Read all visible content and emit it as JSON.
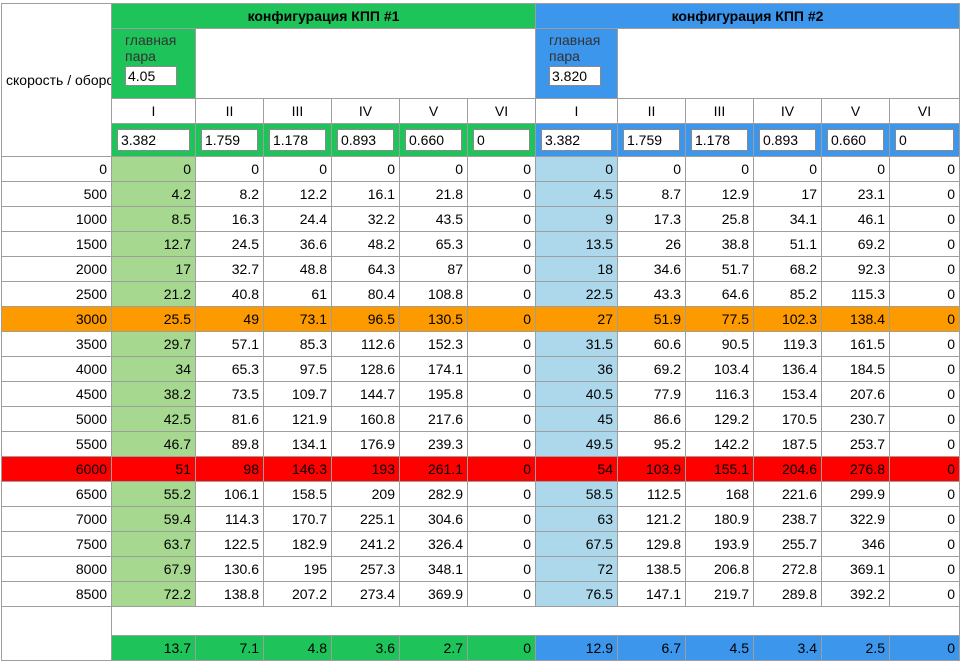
{
  "header": {
    "corner_label": "скорость / обороты",
    "config1_title": "конфигурация КПП #1",
    "config2_title": "конфигурация КПП #2",
    "main_pair_label": "главная пара",
    "config1_main_pair": "4.05",
    "config2_main_pair": "3.820"
  },
  "gear_labels": [
    "I",
    "II",
    "III",
    "IV",
    "V",
    "VI"
  ],
  "config1_ratios": [
    "3.382",
    "1.759",
    "1.178",
    "0.893",
    "0.660",
    "0"
  ],
  "config2_ratios": [
    "3.382",
    "1.759",
    "1.178",
    "0.893",
    "0.660",
    "0"
  ],
  "rows": [
    {
      "rpm": "0",
      "c1": [
        "0",
        "0",
        "0",
        "0",
        "0",
        "0"
      ],
      "c2": [
        "0",
        "0",
        "0",
        "0",
        "0",
        "0"
      ],
      "highlight": ""
    },
    {
      "rpm": "500",
      "c1": [
        "4.2",
        "8.2",
        "12.2",
        "16.1",
        "21.8",
        "0"
      ],
      "c2": [
        "4.5",
        "8.7",
        "12.9",
        "17",
        "23.1",
        "0"
      ],
      "highlight": ""
    },
    {
      "rpm": "1000",
      "c1": [
        "8.5",
        "16.3",
        "24.4",
        "32.2",
        "43.5",
        "0"
      ],
      "c2": [
        "9",
        "17.3",
        "25.8",
        "34.1",
        "46.1",
        "0"
      ],
      "highlight": ""
    },
    {
      "rpm": "1500",
      "c1": [
        "12.7",
        "24.5",
        "36.6",
        "48.2",
        "65.3",
        "0"
      ],
      "c2": [
        "13.5",
        "26",
        "38.8",
        "51.1",
        "69.2",
        "0"
      ],
      "highlight": ""
    },
    {
      "rpm": "2000",
      "c1": [
        "17",
        "32.7",
        "48.8",
        "64.3",
        "87",
        "0"
      ],
      "c2": [
        "18",
        "34.6",
        "51.7",
        "68.2",
        "92.3",
        "0"
      ],
      "highlight": ""
    },
    {
      "rpm": "2500",
      "c1": [
        "21.2",
        "40.8",
        "61",
        "80.4",
        "108.8",
        "0"
      ],
      "c2": [
        "22.5",
        "43.3",
        "64.6",
        "85.2",
        "115.3",
        "0"
      ],
      "highlight": ""
    },
    {
      "rpm": "3000",
      "c1": [
        "25.5",
        "49",
        "73.1",
        "96.5",
        "130.5",
        "0"
      ],
      "c2": [
        "27",
        "51.9",
        "77.5",
        "102.3",
        "138.4",
        "0"
      ],
      "highlight": "orange"
    },
    {
      "rpm": "3500",
      "c1": [
        "29.7",
        "57.1",
        "85.3",
        "112.6",
        "152.3",
        "0"
      ],
      "c2": [
        "31.5",
        "60.6",
        "90.5",
        "119.3",
        "161.5",
        "0"
      ],
      "highlight": ""
    },
    {
      "rpm": "4000",
      "c1": [
        "34",
        "65.3",
        "97.5",
        "128.6",
        "174.1",
        "0"
      ],
      "c2": [
        "36",
        "69.2",
        "103.4",
        "136.4",
        "184.5",
        "0"
      ],
      "highlight": ""
    },
    {
      "rpm": "4500",
      "c1": [
        "38.2",
        "73.5",
        "109.7",
        "144.7",
        "195.8",
        "0"
      ],
      "c2": [
        "40.5",
        "77.9",
        "116.3",
        "153.4",
        "207.6",
        "0"
      ],
      "highlight": ""
    },
    {
      "rpm": "5000",
      "c1": [
        "42.5",
        "81.6",
        "121.9",
        "160.8",
        "217.6",
        "0"
      ],
      "c2": [
        "45",
        "86.6",
        "129.2",
        "170.5",
        "230.7",
        "0"
      ],
      "highlight": ""
    },
    {
      "rpm": "5500",
      "c1": [
        "46.7",
        "89.8",
        "134.1",
        "176.9",
        "239.3",
        "0"
      ],
      "c2": [
        "49.5",
        "95.2",
        "142.2",
        "187.5",
        "253.7",
        "0"
      ],
      "highlight": ""
    },
    {
      "rpm": "6000",
      "c1": [
        "51",
        "98",
        "146.3",
        "193",
        "261.1",
        "0"
      ],
      "c2": [
        "54",
        "103.9",
        "155.1",
        "204.6",
        "276.8",
        "0"
      ],
      "highlight": "red"
    },
    {
      "rpm": "6500",
      "c1": [
        "55.2",
        "106.1",
        "158.5",
        "209",
        "282.9",
        "0"
      ],
      "c2": [
        "58.5",
        "112.5",
        "168",
        "221.6",
        "299.9",
        "0"
      ],
      "highlight": ""
    },
    {
      "rpm": "7000",
      "c1": [
        "59.4",
        "114.3",
        "170.7",
        "225.1",
        "304.6",
        "0"
      ],
      "c2": [
        "63",
        "121.2",
        "180.9",
        "238.7",
        "322.9",
        "0"
      ],
      "highlight": ""
    },
    {
      "rpm": "7500",
      "c1": [
        "63.7",
        "122.5",
        "182.9",
        "241.2",
        "326.4",
        "0"
      ],
      "c2": [
        "67.5",
        "129.8",
        "193.9",
        "255.7",
        "346",
        "0"
      ],
      "highlight": ""
    },
    {
      "rpm": "8000",
      "c1": [
        "67.9",
        "130.6",
        "195",
        "257.3",
        "348.1",
        "0"
      ],
      "c2": [
        "72",
        "138.5",
        "206.8",
        "272.8",
        "369.1",
        "0"
      ],
      "highlight": ""
    },
    {
      "rpm": "8500",
      "c1": [
        "72.2",
        "138.8",
        "207.2",
        "273.4",
        "369.9",
        "0"
      ],
      "c2": [
        "76.5",
        "147.1",
        "219.7",
        "289.8",
        "392.2",
        "0"
      ],
      "highlight": ""
    }
  ],
  "footer": {
    "c1": [
      "13.7",
      "7.1",
      "4.8",
      "3.6",
      "2.7",
      "0"
    ],
    "c2": [
      "12.9",
      "6.7",
      "4.5",
      "3.4",
      "2.5",
      "0"
    ]
  },
  "colors": {
    "config1": "#1ec35a",
    "config2": "#3b96ec",
    "config1_first_gear": "#a6d98f",
    "config2_first_gear": "#add8ec",
    "highlight_orange": "#fd9a00",
    "highlight_red": "#ff0000"
  }
}
